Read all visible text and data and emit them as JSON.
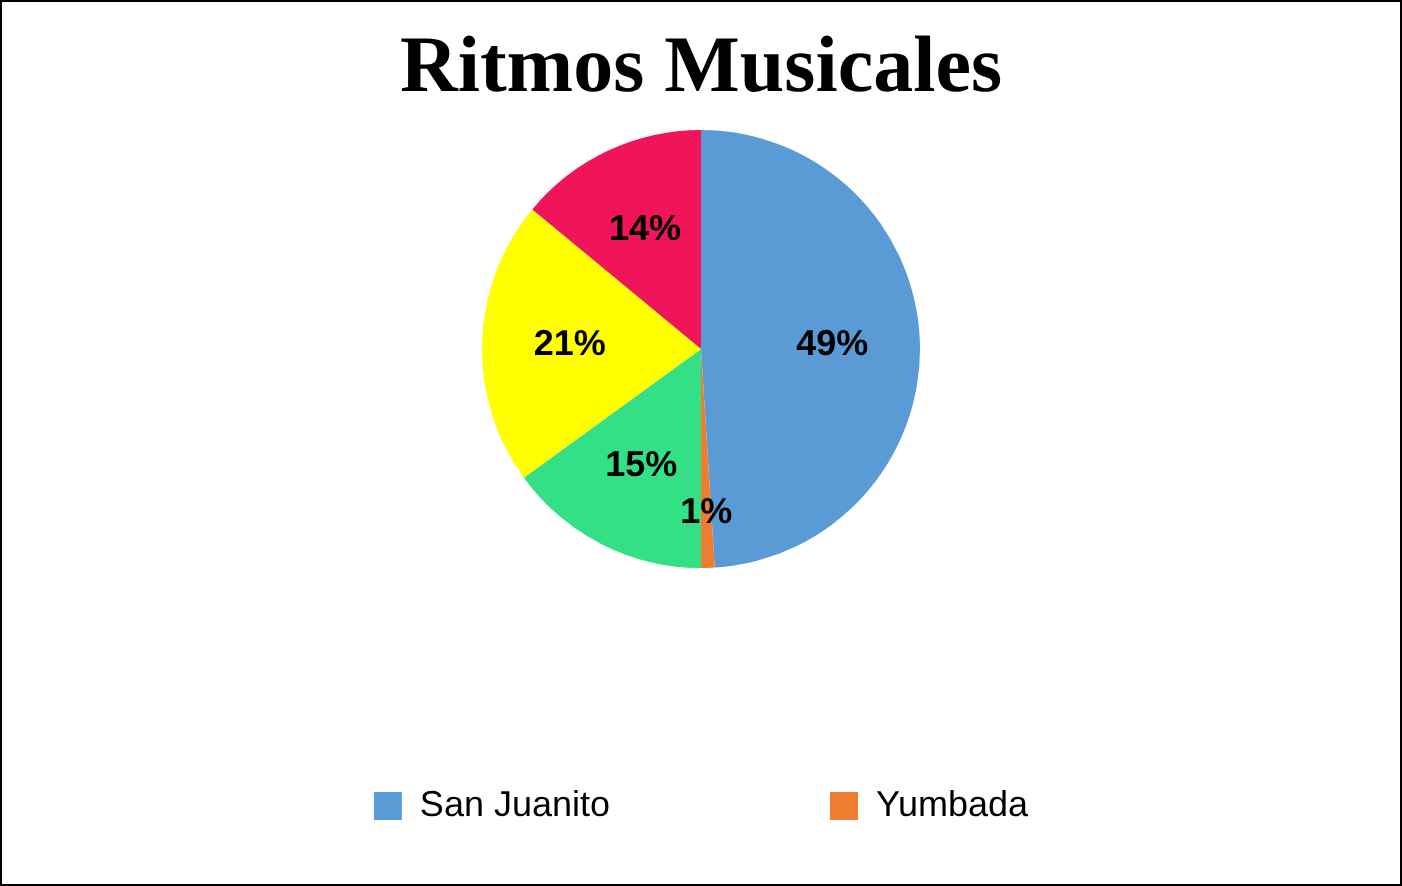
{
  "chart_data": {
    "type": "pie",
    "title": "Ritmos Musicales",
    "categories": [
      "San Juanito",
      "Yumbada",
      null,
      null,
      null
    ],
    "values": [
      49,
      1,
      15,
      21,
      14
    ],
    "colors": [
      "#5b9bd5",
      "#ed7d31",
      "#33e085",
      "#ffff00",
      "#f0155a"
    ],
    "value_labels": [
      "49%",
      "1%",
      "15%",
      "21%",
      "14%"
    ],
    "legend": "bottom"
  }
}
